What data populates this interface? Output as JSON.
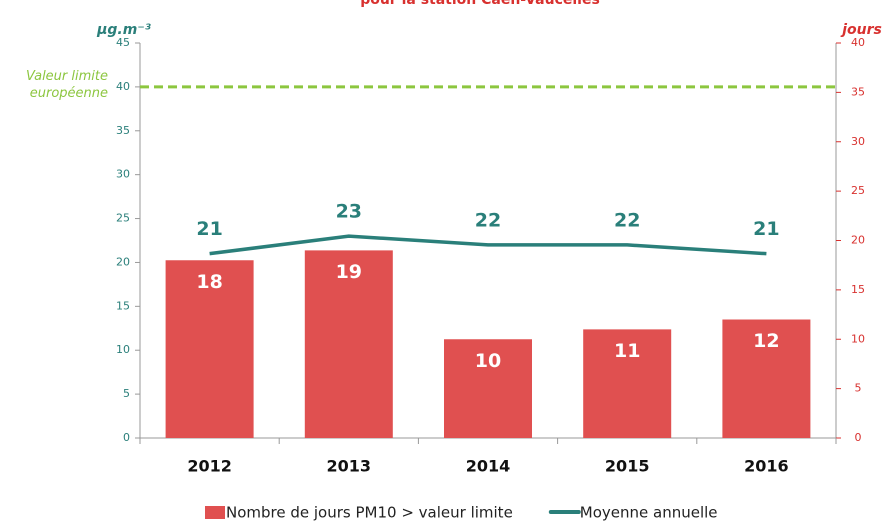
{
  "chart_data": {
    "type": "bar",
    "title": "pour la station Caen-Vaucelles",
    "ylabel": "μg.m⁻³",
    "y2label": "jours",
    "categories": [
      "2012",
      "2013",
      "2014",
      "2015",
      "2016"
    ],
    "series": [
      {
        "name": "Nombre de jours PM10 > valeur limite",
        "type": "bar",
        "axis": "y2",
        "color": "#e05050",
        "values": [
          18,
          19,
          10,
          11,
          12
        ]
      },
      {
        "name": "Moyenne annuelle",
        "type": "line",
        "axis": "y",
        "color": "#2a7f7a",
        "values": [
          21,
          23,
          22,
          22,
          21
        ]
      }
    ],
    "ylim": [
      0,
      45
    ],
    "yticks": [
      0,
      5,
      10,
      15,
      20,
      25,
      30,
      35,
      40,
      45
    ],
    "y2lim": [
      0,
      40
    ],
    "y2ticks": [
      0,
      5,
      10,
      15,
      20,
      25,
      30,
      35,
      40
    ],
    "reference_line": {
      "value": 40,
      "label": "Valeur limite européenne",
      "color": "#8cc63f"
    },
    "legend": "bottom"
  }
}
